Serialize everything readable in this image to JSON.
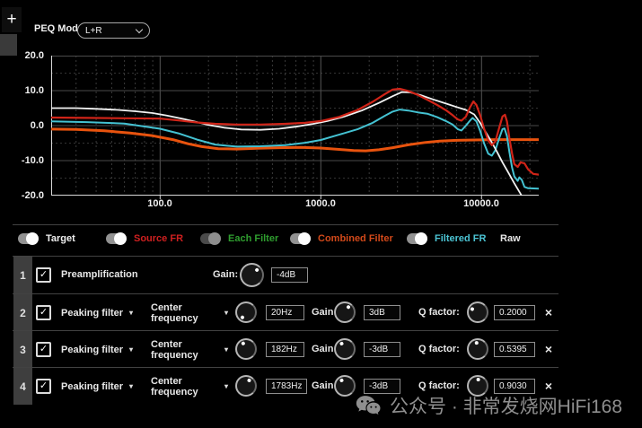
{
  "ui": {
    "plus": "+",
    "caret": "▾",
    "check": "✓"
  },
  "topbar": {
    "peq_mode_label": "PEQ Mode:",
    "peq_mode_value": "L+R"
  },
  "chart_data": {
    "type": "line",
    "xscale": "log",
    "xlim": [
      21,
      22700
    ],
    "ylim": [
      -20,
      20
    ],
    "grid": true,
    "yticks": [
      {
        "v": 20,
        "label": "20.0"
      },
      {
        "v": 10,
        "label": "10.0"
      },
      {
        "v": 0,
        "label": "0.0"
      },
      {
        "v": -10,
        "label": "-10.0"
      },
      {
        "v": -20,
        "label": "-20.0"
      }
    ],
    "xticks": [
      {
        "v": 100,
        "label": "100.0"
      },
      {
        "v": 1000,
        "label": "1000.0"
      },
      {
        "v": 10000,
        "label": "10000.0"
      }
    ],
    "series": [
      {
        "name": "Combined Filter",
        "color": "#e8530e",
        "width": 3,
        "points": [
          [
            21,
            -1.0
          ],
          [
            30,
            -1.1
          ],
          [
            45,
            -1.5
          ],
          [
            65,
            -2.1
          ],
          [
            90,
            -2.9
          ],
          [
            120,
            -4.0
          ],
          [
            150,
            -5.2
          ],
          [
            182,
            -6.0
          ],
          [
            230,
            -6.6
          ],
          [
            300,
            -6.7
          ],
          [
            400,
            -6.5
          ],
          [
            550,
            -6.3
          ],
          [
            750,
            -6.2
          ],
          [
            1000,
            -6.4
          ],
          [
            1300,
            -6.8
          ],
          [
            1600,
            -7.1
          ],
          [
            1900,
            -7.2
          ],
          [
            2300,
            -6.9
          ],
          [
            2800,
            -6.3
          ],
          [
            3500,
            -5.5
          ],
          [
            4500,
            -4.8
          ],
          [
            5500,
            -4.4
          ],
          [
            7000,
            -4.2
          ],
          [
            9000,
            -4.1
          ],
          [
            12000,
            -4.0
          ],
          [
            16000,
            -4.0
          ],
          [
            22700,
            -4.0
          ]
        ]
      },
      {
        "name": "Filtered FR",
        "color": "#44c2d2",
        "width": 2,
        "points": [
          [
            21,
            1.2
          ],
          [
            35,
            1.0
          ],
          [
            60,
            0.6
          ],
          [
            100,
            -0.9
          ],
          [
            130,
            -2.2
          ],
          [
            170,
            -4.0
          ],
          [
            220,
            -5.4
          ],
          [
            300,
            -6.0
          ],
          [
            420,
            -5.9
          ],
          [
            600,
            -5.6
          ],
          [
            800,
            -4.9
          ],
          [
            1000,
            -4.1
          ],
          [
            1300,
            -2.6
          ],
          [
            1700,
            -1.0
          ],
          [
            2100,
            0.8
          ],
          [
            2500,
            2.8
          ],
          [
            2800,
            4.0
          ],
          [
            3100,
            4.6
          ],
          [
            3500,
            4.3
          ],
          [
            4000,
            3.8
          ],
          [
            4600,
            3.4
          ],
          [
            5300,
            2.4
          ],
          [
            6000,
            1.3
          ],
          [
            6600,
            0.3
          ],
          [
            7100,
            -1.0
          ],
          [
            7500,
            -1.4
          ],
          [
            8000,
            0.0
          ],
          [
            8500,
            1.5
          ],
          [
            8800,
            2.2
          ],
          [
            9300,
            1.2
          ],
          [
            9800,
            -1.5
          ],
          [
            10400,
            -5.2
          ],
          [
            11000,
            -8.0
          ],
          [
            11600,
            -8.6
          ],
          [
            12200,
            -7.0
          ],
          [
            12900,
            -3.5
          ],
          [
            13500,
            -1.0
          ],
          [
            13900,
            -0.8
          ],
          [
            14400,
            -3.0
          ],
          [
            14900,
            -7.5
          ],
          [
            15500,
            -12.0
          ],
          [
            16000,
            -14.5
          ],
          [
            16800,
            -15.8
          ],
          [
            17200,
            -14.8
          ],
          [
            17800,
            -15.5
          ],
          [
            18500,
            -17.5
          ],
          [
            19500,
            -17.9
          ],
          [
            22700,
            -18.0
          ]
        ]
      },
      {
        "name": "Target",
        "color": "#f2f2f2",
        "width": 1.8,
        "points": [
          [
            21,
            5.0
          ],
          [
            30,
            5.0
          ],
          [
            40,
            4.8
          ],
          [
            55,
            4.5
          ],
          [
            70,
            4.1
          ],
          [
            90,
            3.6
          ],
          [
            110,
            2.9
          ],
          [
            140,
            1.9
          ],
          [
            170,
            1.0
          ],
          [
            200,
            0.2
          ],
          [
            250,
            -0.6
          ],
          [
            320,
            -1.1
          ],
          [
            420,
            -1.2
          ],
          [
            550,
            -0.9
          ],
          [
            700,
            -0.3
          ],
          [
            900,
            0.5
          ],
          [
            1100,
            1.3
          ],
          [
            1400,
            2.6
          ],
          [
            1800,
            4.3
          ],
          [
            2300,
            6.5
          ],
          [
            2800,
            8.4
          ],
          [
            3200,
            9.6
          ],
          [
            3600,
            9.5
          ],
          [
            4200,
            8.7
          ],
          [
            5000,
            7.5
          ],
          [
            6000,
            6.3
          ],
          [
            7000,
            5.3
          ],
          [
            8000,
            4.5
          ],
          [
            9000,
            3.2
          ],
          [
            9800,
            0.8
          ],
          [
            10500,
            -1.5
          ],
          [
            11500,
            -4.5
          ],
          [
            12500,
            -7.5
          ],
          [
            13500,
            -10.5
          ],
          [
            14500,
            -13.0
          ],
          [
            16000,
            -16.5
          ],
          [
            17500,
            -19.5
          ],
          [
            18200,
            -21.0
          ],
          [
            18600,
            -23.0
          ]
        ]
      },
      {
        "name": "Source FR",
        "color": "#d02418",
        "width": 2.2,
        "points": [
          [
            21,
            2.3
          ],
          [
            35,
            2.2
          ],
          [
            60,
            2.1
          ],
          [
            100,
            2.0
          ],
          [
            130,
            1.5
          ],
          [
            170,
            0.9
          ],
          [
            220,
            0.5
          ],
          [
            300,
            0.3
          ],
          [
            420,
            0.3
          ],
          [
            600,
            0.5
          ],
          [
            800,
            0.8
          ],
          [
            1000,
            1.3
          ],
          [
            1300,
            2.5
          ],
          [
            1700,
            4.5
          ],
          [
            2100,
            6.8
          ],
          [
            2500,
            9.0
          ],
          [
            2800,
            10.3
          ],
          [
            3100,
            10.5
          ],
          [
            3500,
            9.9
          ],
          [
            4000,
            8.8
          ],
          [
            4600,
            7.4
          ],
          [
            5300,
            5.9
          ],
          [
            6000,
            4.4
          ],
          [
            6600,
            3.0
          ],
          [
            7100,
            1.8
          ],
          [
            7500,
            1.4
          ],
          [
            8000,
            2.6
          ],
          [
            8500,
            5.3
          ],
          [
            8900,
            6.9
          ],
          [
            9300,
            5.9
          ],
          [
            9800,
            3.0
          ],
          [
            10400,
            -1.0
          ],
          [
            11000,
            -4.2
          ],
          [
            11600,
            -5.6
          ],
          [
            12200,
            -4.5
          ],
          [
            12900,
            -0.5
          ],
          [
            13500,
            2.6
          ],
          [
            14000,
            3.1
          ],
          [
            14400,
            1.2
          ],
          [
            14900,
            -3.5
          ],
          [
            15500,
            -8.0
          ],
          [
            16000,
            -11.0
          ],
          [
            16800,
            -11.8
          ],
          [
            17500,
            -10.5
          ],
          [
            18500,
            -10.8
          ],
          [
            19500,
            -12.5
          ],
          [
            21000,
            -13.8
          ],
          [
            22700,
            -14.0
          ]
        ]
      }
    ]
  },
  "legend": {
    "items": [
      {
        "label": "Target",
        "color": "#f0f0f0",
        "on": true,
        "has_toggle": true
      },
      {
        "label": "Source FR",
        "color": "#cf2020",
        "on": true,
        "has_toggle": true
      },
      {
        "label": "Each Filter",
        "color": "#2f9e2f",
        "on": false,
        "has_toggle": true
      },
      {
        "label": "Combined Filter",
        "color": "#d2491a",
        "on": true,
        "has_toggle": true
      },
      {
        "label": "Filtered FR",
        "color": "#4cc4d4",
        "on": true,
        "has_toggle": true
      },
      {
        "label": "Raw",
        "color": "#e8e8e8",
        "on": false,
        "has_toggle": false
      }
    ]
  },
  "rows": [
    {
      "index": "1",
      "checked": true,
      "name": "Preamplification",
      "gain_label": "Gain:",
      "gain_value": "-4dB",
      "gain_angle": 40,
      "delete_label": ""
    },
    {
      "index": "2",
      "checked": true,
      "type": "Peaking filter",
      "param": "Center frequency",
      "freq_value": "20Hz",
      "freq_angle": 215,
      "gain_label": "Gain:",
      "gain_value": "3dB",
      "gain_angle": 35,
      "q_label": "Q factor:",
      "q_value": "0.2000",
      "q_angle": 300,
      "delete_label": "×"
    },
    {
      "index": "3",
      "checked": true,
      "type": "Peaking filter",
      "param": "Center frequency",
      "freq_value": "182Hz",
      "freq_angle": 333,
      "gain_label": "Gain:",
      "gain_value": "-3dB",
      "gain_angle": 330,
      "q_label": "Q factor:",
      "q_value": "0.5395",
      "q_angle": 350,
      "delete_label": "×"
    },
    {
      "index": "4",
      "checked": true,
      "type": "Peaking filter",
      "param": "Center frequency",
      "freq_value": "1783Hz",
      "freq_angle": 30,
      "gain_label": "Gain:",
      "gain_value": "-3dB",
      "gain_angle": 330,
      "q_label": "Q factor:",
      "q_value": "0.9030",
      "q_angle": 5,
      "delete_label": "×"
    }
  ],
  "watermark": {
    "icon": "wechat-icon",
    "text": "公众号 · 非常发烧网HiFi168"
  }
}
